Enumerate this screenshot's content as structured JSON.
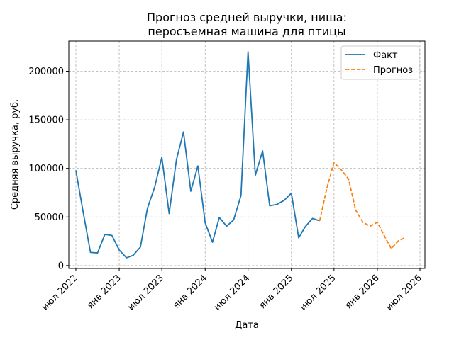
{
  "chart_data": {
    "type": "line",
    "title_line1": "Прогноз средней выручки, ниша:",
    "title_line2": "перосъемная машина для птицы",
    "xlabel": "Дата",
    "ylabel": "Средняя выручка, руб.",
    "ylim": [
      -3000,
      231000
    ],
    "xlim": [
      "2022-06-01",
      "2026-07-22"
    ],
    "grid": true,
    "legend_position": "top-right",
    "x_ticks": [
      {
        "date": "2022-07-01",
        "label": "июл 2022"
      },
      {
        "date": "2023-01-01",
        "label": "янв 2023"
      },
      {
        "date": "2023-07-01",
        "label": "июл 2023"
      },
      {
        "date": "2024-01-01",
        "label": "янв 2024"
      },
      {
        "date": "2024-07-01",
        "label": "июл 2024"
      },
      {
        "date": "2025-01-01",
        "label": "янв 2025"
      },
      {
        "date": "2025-07-01",
        "label": "июл 2025"
      },
      {
        "date": "2026-01-01",
        "label": "янв 2026"
      },
      {
        "date": "2026-07-01",
        "label": "июл 2026"
      }
    ],
    "y_ticks": [
      {
        "value": 0,
        "label": "0"
      },
      {
        "value": 50000,
        "label": "50000"
      },
      {
        "value": 100000,
        "label": "100000"
      },
      {
        "value": 150000,
        "label": "150000"
      },
      {
        "value": 200000,
        "label": "200000"
      }
    ],
    "series": [
      {
        "name": "Факт",
        "color": "#1f77b4",
        "style": "solid",
        "x": [
          "2022-07-01",
          "2022-08-01",
          "2022-09-01",
          "2022-10-01",
          "2022-11-01",
          "2022-12-01",
          "2023-01-01",
          "2023-02-01",
          "2023-03-01",
          "2023-04-01",
          "2023-05-01",
          "2023-06-01",
          "2023-07-01",
          "2023-08-01",
          "2023-09-01",
          "2023-10-01",
          "2023-11-01",
          "2023-12-01",
          "2024-01-01",
          "2024-02-01",
          "2024-03-01",
          "2024-04-01",
          "2024-05-01",
          "2024-06-01",
          "2024-07-01",
          "2024-08-01",
          "2024-09-01",
          "2024-10-01",
          "2024-11-01",
          "2024-12-01",
          "2025-01-01",
          "2025-02-01",
          "2025-03-01",
          "2025-04-01",
          "2025-05-01"
        ],
        "y": [
          98000,
          55000,
          13500,
          13000,
          32000,
          31000,
          16000,
          8000,
          10500,
          19000,
          59000,
          81000,
          111500,
          53500,
          109000,
          137500,
          76500,
          102500,
          44000,
          24000,
          49500,
          40500,
          47000,
          72000,
          220000,
          93000,
          118000,
          61500,
          63000,
          67000,
          74500,
          28500,
          40000,
          48500,
          46000
        ]
      },
      {
        "name": "Прогноз",
        "color": "#ff7f0e",
        "style": "dashed",
        "x": [
          "2025-05-01",
          "2025-06-01",
          "2025-07-01",
          "2025-08-01",
          "2025-09-01",
          "2025-10-01",
          "2025-11-01",
          "2025-12-01",
          "2026-01-01",
          "2026-02-01",
          "2026-03-01",
          "2026-04-01",
          "2026-05-01"
        ],
        "y": [
          46000,
          80000,
          106000,
          98500,
          89000,
          57000,
          44500,
          40500,
          44500,
          30000,
          17500,
          25500,
          29000
        ]
      }
    ]
  }
}
